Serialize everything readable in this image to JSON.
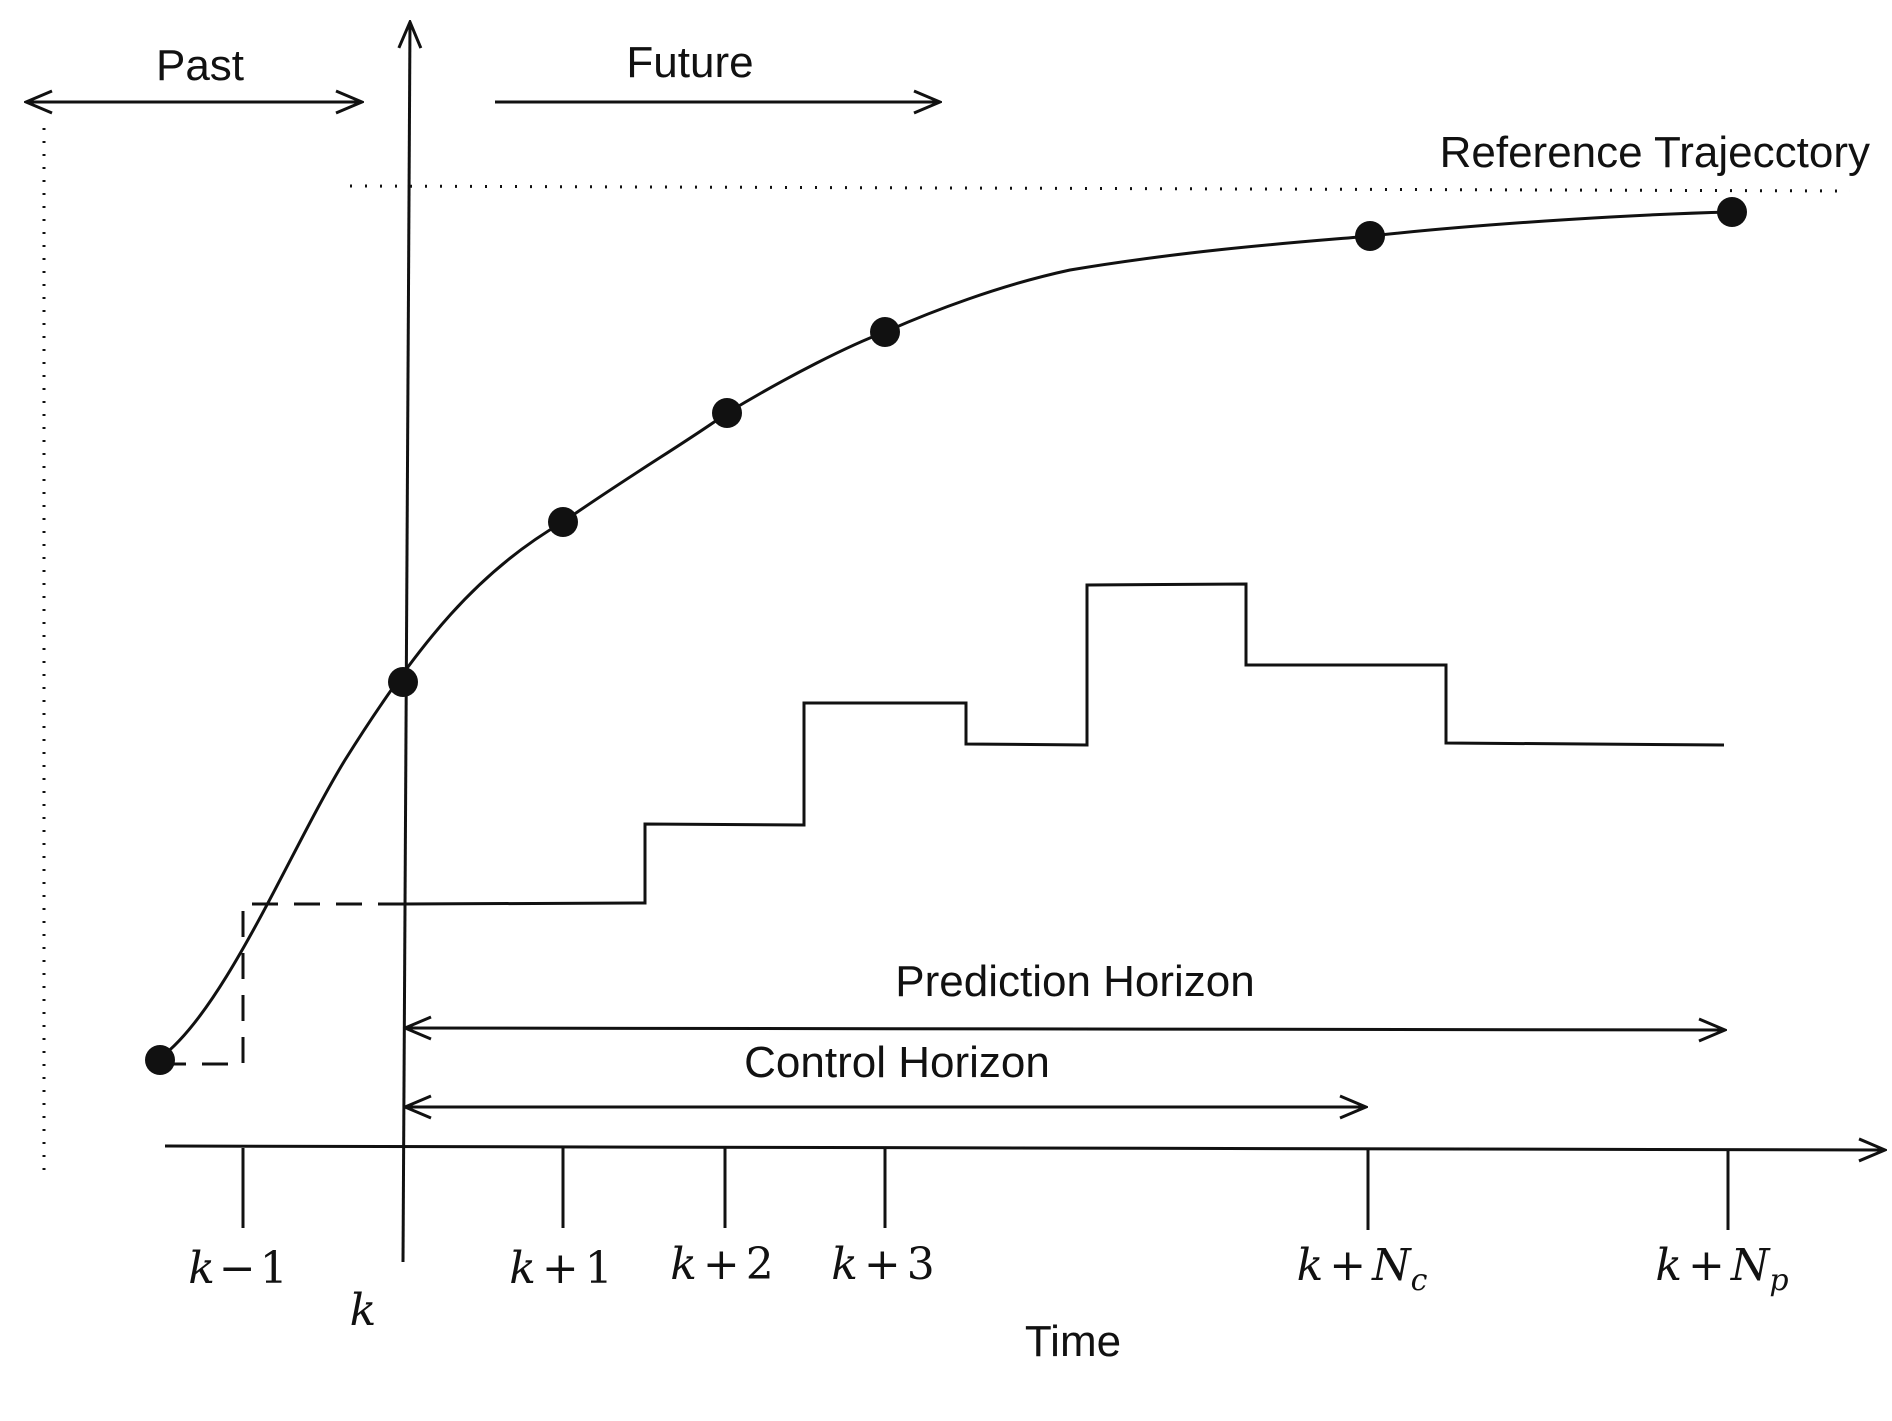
{
  "labels": {
    "past": "Past",
    "future": "Future",
    "reference": "Reference Trajecctory",
    "prediction_horizon": "Prediction Horizon",
    "control_horizon": "Control Horizon",
    "time": "Time"
  },
  "ticks": [
    {
      "var": "k",
      "op": "−",
      "num": "1",
      "sub": ""
    },
    {
      "var": "k",
      "op": "",
      "num": "",
      "sub": ""
    },
    {
      "var": "k",
      "op": "+",
      "num": "1",
      "sub": ""
    },
    {
      "var": "k",
      "op": "+",
      "num": "2",
      "sub": ""
    },
    {
      "var": "k",
      "op": "+",
      "num": "3",
      "sub": ""
    },
    {
      "var": "k",
      "op": "+",
      "num": "N",
      "sub": "c"
    },
    {
      "var": "k",
      "op": "+",
      "num": "N",
      "sub": "p"
    }
  ],
  "colors": {
    "ink": "#111111",
    "background": "#ffffff"
  }
}
